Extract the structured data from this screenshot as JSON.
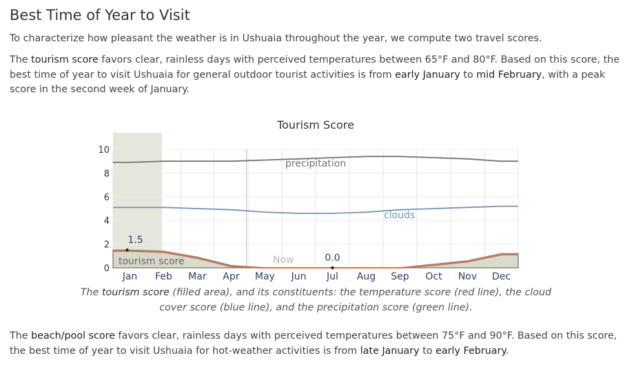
{
  "heading": "Best Time of Year to Visit",
  "intro": "To characterize how pleasant the weather is in Ushuaia throughout the year, we compute two travel scores.",
  "tourism_para": {
    "t1": "The ",
    "term": "tourism score",
    "t2": " favors clear, rainless days with perceived temperatures between 65°F and 80°F. Based on this score, the best time of year to visit Ushuaia for general outdoor tourist activities is from ",
    "start": "early January",
    "t3": " to ",
    "end": "mid February",
    "t4": ", with a peak score in the second week of January."
  },
  "caption": {
    "t1": "The ",
    "term": "tourism score",
    "t2": " (filled area), and its constituents: the temperature score (red line), the cloud cover score (blue line), and the precipitation score (green line)."
  },
  "beach_para": {
    "t1": "The ",
    "term": "beach/pool score",
    "t2": " favors clear, rainless days with perceived temperatures between 75°F and 90°F. Based on this score, the best time of year to visit Ushuaia for hot-weather activities is from ",
    "start": "late January",
    "t3": " to ",
    "end": "early February",
    "t4": "."
  },
  "chart_data": {
    "type": "area",
    "title": "Tourism Score",
    "x": [
      "Jan",
      "Feb",
      "Mar",
      "Apr",
      "May",
      "Jun",
      "Jul",
      "Aug",
      "Sep",
      "Oct",
      "Nov",
      "Dec"
    ],
    "ylim": [
      0,
      10
    ],
    "yticks": [
      "0",
      "2",
      "4",
      "6",
      "8",
      "10"
    ],
    "grid": true,
    "highlight_range": [
      "Jan",
      "mid Feb"
    ],
    "now_label": "Now",
    "series": [
      {
        "name": "precipitation",
        "color": "#6b7a64",
        "values": [
          8.9,
          9.0,
          9.0,
          9.0,
          9.1,
          9.2,
          9.3,
          9.4,
          9.4,
          9.3,
          9.2,
          9.0
        ]
      },
      {
        "name": "clouds",
        "color": "#7592b3",
        "values": [
          5.1,
          5.1,
          5.0,
          4.9,
          4.7,
          4.6,
          4.6,
          4.7,
          4.9,
          5.0,
          5.1,
          5.2
        ]
      },
      {
        "name": "tourism score",
        "type": "area",
        "color": "#d6d6c8",
        "stroke": "#8a8a78",
        "values": [
          1.5,
          1.4,
          0.9,
          0.2,
          0.0,
          0.0,
          0.0,
          0.0,
          0.0,
          0.3,
          0.6,
          1.2
        ]
      },
      {
        "name": "temperature",
        "color": "#d06a4a",
        "values": [
          1.4,
          1.3,
          0.8,
          0.1,
          0.0,
          0.0,
          0.0,
          0.0,
          0.0,
          0.2,
          0.5,
          1.1
        ]
      }
    ],
    "annotations": [
      {
        "text": "1.5",
        "x": "Jan",
        "y": 1.5
      },
      {
        "text": "0.0",
        "x": "Jul",
        "y": 0.0
      }
    ]
  }
}
